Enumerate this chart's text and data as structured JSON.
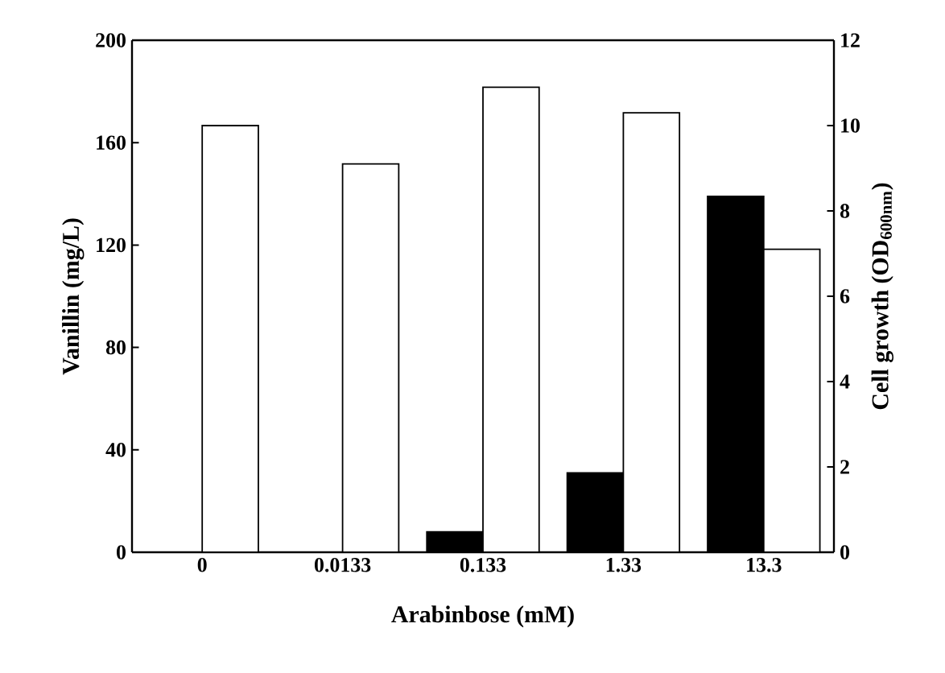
{
  "chart_data": {
    "type": "bar",
    "xlabel": "Arabinbose (mM)",
    "ylabel": "Vanillin (mg/L)",
    "y2label": "Cell growth (OD$_{600nm}$)",
    "categories": [
      "0",
      "0.0133",
      "0.133",
      "1.33",
      "13.3"
    ],
    "series": [
      {
        "color": "#000000",
        "values": [
          0,
          0,
          8,
          31,
          139
        ]
      },
      {
        "color": "#ffffff",
        "axis": "y2",
        "values": [
          10.0,
          9.1,
          10.9,
          10.3,
          7.1
        ]
      }
    ],
    "ylim": [
      0,
      200
    ],
    "yticks": [
      0,
      40,
      80,
      120,
      160,
      200
    ],
    "y2lim": [
      0,
      12
    ],
    "y2ticks": [
      0,
      2,
      4,
      6,
      8,
      10,
      12
    ]
  }
}
